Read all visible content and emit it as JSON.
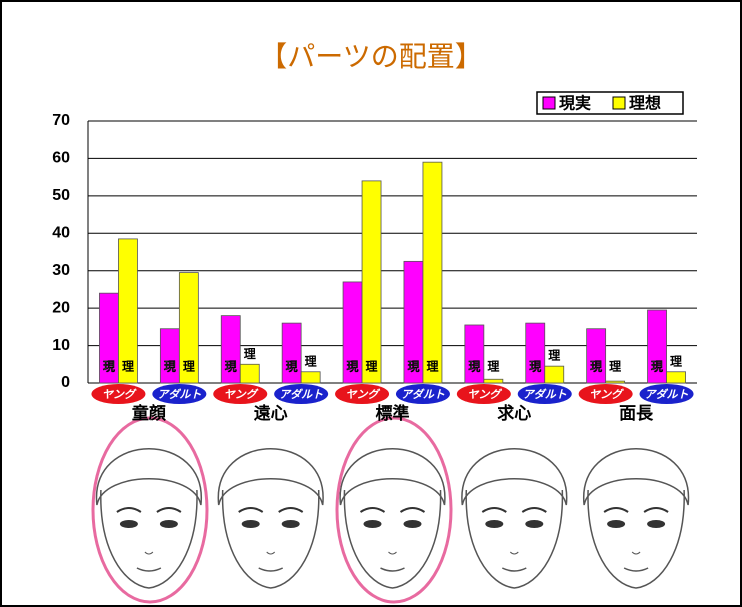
{
  "chart_data": {
    "type": "bar",
    "title": "【パーツの配置】",
    "groups": [
      "童顔",
      "遠心",
      "標準",
      "求心",
      "面長"
    ],
    "categories": [
      "ヤング",
      "アダルト",
      "ヤング",
      "アダルト",
      "ヤング",
      "アダルト",
      "ヤング",
      "アダルト",
      "ヤング",
      "アダルト"
    ],
    "series": [
      {
        "name": "現実",
        "short": "現",
        "color": "#ff00ff",
        "values": [
          24,
          14.5,
          18,
          16,
          27,
          32.5,
          15.5,
          16,
          14.5,
          19.5
        ]
      },
      {
        "name": "理想",
        "short": "理",
        "color": "#ffff00",
        "values": [
          38.5,
          29.5,
          5,
          3,
          54,
          59,
          1,
          4.5,
          0.5,
          3
        ]
      }
    ],
    "ylim": [
      0,
      70
    ],
    "yticks": [
      0,
      10,
      20,
      30,
      40,
      50,
      60,
      70
    ],
    "grid": true,
    "legend": "top-right"
  }
}
